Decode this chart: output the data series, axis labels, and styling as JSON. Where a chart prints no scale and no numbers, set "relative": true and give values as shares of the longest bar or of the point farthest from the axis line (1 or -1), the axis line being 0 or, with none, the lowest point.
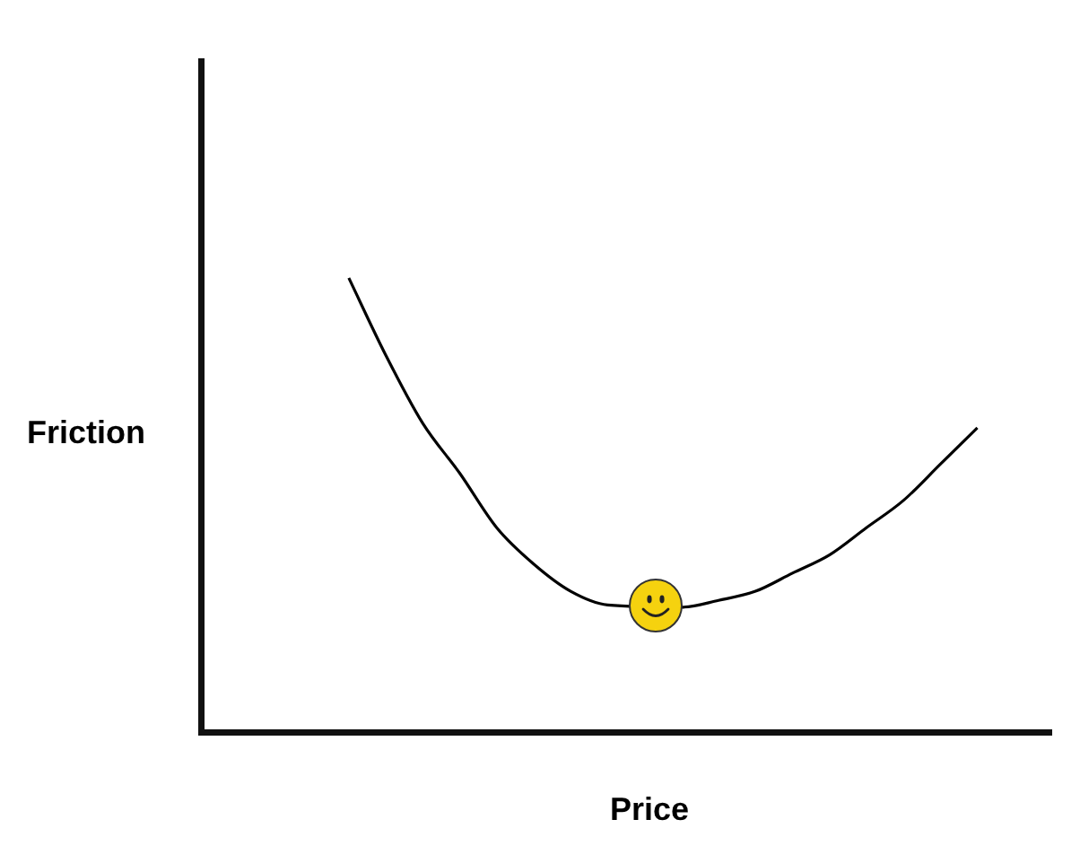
{
  "chart_data": {
    "type": "line",
    "relative": true,
    "xlabel": "Price",
    "ylabel": "Friction",
    "categories": [
      null,
      null,
      null,
      null,
      null,
      null,
      null,
      null,
      null,
      null,
      null,
      null,
      null,
      null,
      null,
      null,
      null,
      null,
      null,
      null,
      null,
      null,
      null,
      null
    ],
    "series": [
      {
        "color": "#000000",
        "values": [
          null,
          null,
          null,
          null,
          1,
          0.83,
          0.68,
          0.57,
          0.45,
          0.37,
          0.31,
          0.28,
          null,
          0.275,
          0.29,
          0.31,
          0.35,
          0.39,
          0.45,
          0.51,
          0.59,
          0.67,
          null,
          null
        ]
      }
    ],
    "grid": false,
    "legend": false,
    "marker": "none",
    "line_style": "solid"
  }
}
